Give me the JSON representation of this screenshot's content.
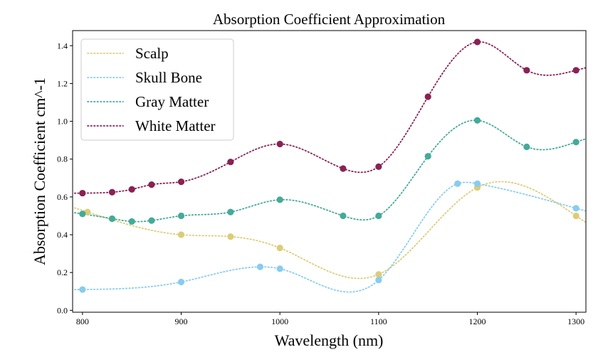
{
  "chart_data": {
    "type": "line",
    "title": "Absorption Coefficient Approximation",
    "xlabel": "Wavelength (nm)",
    "ylabel": "Absorption Coefficient cm^-1",
    "xlim": [
      790,
      1310
    ],
    "ylim": [
      -0.01,
      1.48
    ],
    "xticks": [
      800,
      900,
      1000,
      1100,
      1200,
      1300
    ],
    "yticks": [
      0.0,
      0.2,
      0.4,
      0.6,
      0.8,
      1.0,
      1.2,
      1.4
    ],
    "xtick_labels": [
      "800",
      "900",
      "1000",
      "1100",
      "1200",
      "1300"
    ],
    "ytick_labels": [
      "0.0",
      "0.2",
      "0.4",
      "0.6",
      "0.8",
      "1.0",
      "1.2",
      "1.4"
    ],
    "grid": false,
    "legend_position": "upper-left",
    "line_style": "dotted",
    "series": [
      {
        "name": "Scalp",
        "color": "#DDCC77",
        "points": [
          [
            805,
            0.52
          ],
          [
            900,
            0.4
          ],
          [
            950,
            0.39
          ],
          [
            1000,
            0.33
          ],
          [
            1100,
            0.19
          ],
          [
            1200,
            0.65
          ],
          [
            1300,
            0.5
          ]
        ]
      },
      {
        "name": "Skull Bone",
        "color": "#88CCEE",
        "points": [
          [
            800,
            0.11
          ],
          [
            900,
            0.15
          ],
          [
            980,
            0.23
          ],
          [
            1000,
            0.22
          ],
          [
            1100,
            0.16
          ],
          [
            1180,
            0.67
          ],
          [
            1200,
            0.67
          ],
          [
            1300,
            0.54
          ]
        ]
      },
      {
        "name": "Gray Matter",
        "color": "#44AA99",
        "points": [
          [
            800,
            0.51
          ],
          [
            830,
            0.485
          ],
          [
            850,
            0.47
          ],
          [
            870,
            0.475
          ],
          [
            900,
            0.5
          ],
          [
            950,
            0.52
          ],
          [
            1000,
            0.585
          ],
          [
            1064,
            0.5
          ],
          [
            1100,
            0.5
          ],
          [
            1150,
            0.815
          ],
          [
            1200,
            1.005
          ],
          [
            1250,
            0.865
          ],
          [
            1300,
            0.89
          ]
        ]
      },
      {
        "name": "White Matter",
        "color": "#882255",
        "points": [
          [
            800,
            0.62
          ],
          [
            830,
            0.625
          ],
          [
            850,
            0.64
          ],
          [
            870,
            0.665
          ],
          [
            900,
            0.68
          ],
          [
            950,
            0.785
          ],
          [
            1000,
            0.88
          ],
          [
            1064,
            0.75
          ],
          [
            1100,
            0.76
          ],
          [
            1150,
            1.13
          ],
          [
            1200,
            1.42
          ],
          [
            1250,
            1.27
          ],
          [
            1300,
            1.27
          ]
        ]
      }
    ]
  }
}
